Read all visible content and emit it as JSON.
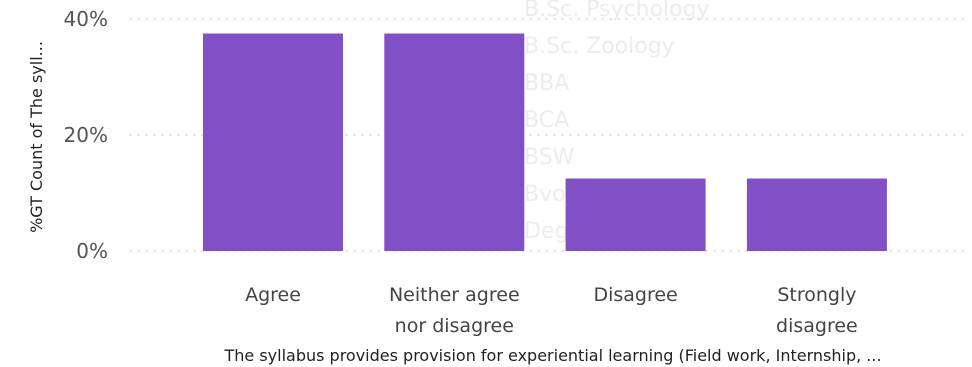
{
  "chart_data": {
    "type": "bar",
    "categories": [
      "Agree",
      "Neither agree nor disagree",
      "Disagree",
      "Strongly disagree"
    ],
    "category_lines": [
      [
        "Agree"
      ],
      [
        "Neither agree",
        "nor disagree"
      ],
      [
        "Disagree"
      ],
      [
        "Strongly",
        "disagree"
      ]
    ],
    "values": [
      37.5,
      37.5,
      12.5,
      12.5
    ],
    "ylim": [
      0,
      40
    ],
    "yticks": [
      {
        "value": 0,
        "label": "0%"
      },
      {
        "value": 20,
        "label": "20%"
      },
      {
        "value": 40,
        "label": "40%"
      }
    ],
    "xlabel": "The syllabus provides provision for experiential learning (Field work, Internship, ...",
    "ylabel": "%GT Count of The syll...",
    "grid": true,
    "bar_color": "#8150c6",
    "grid_color": "#c8c8c8",
    "background_list": [
      "B.Sc. Psychology",
      "B.Sc. Zoology",
      "BBA",
      "BCA",
      "BSW",
      "Bvoc",
      "Degree"
    ]
  }
}
